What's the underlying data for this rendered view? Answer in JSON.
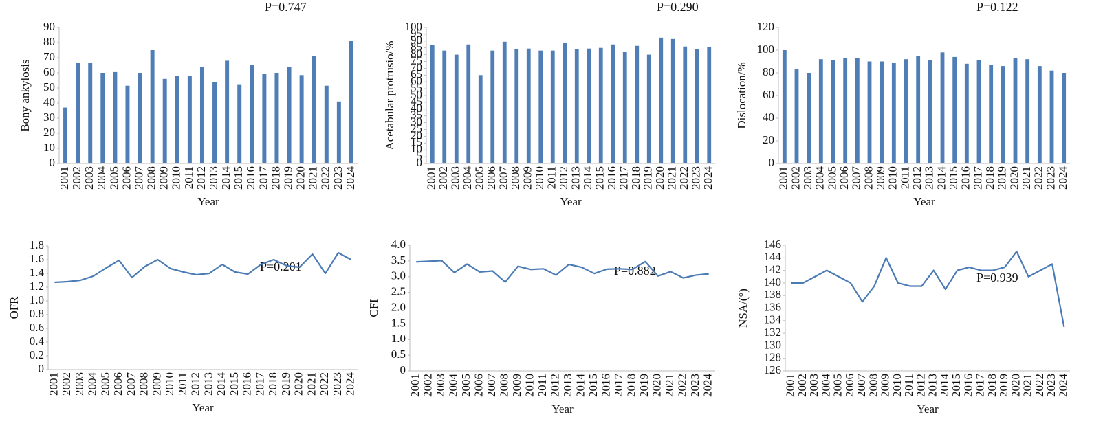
{
  "chart_data": [
    {
      "type": "bar",
      "y_label": "Bony ankylosis",
      "x_label": "Year",
      "annotation": "P=0.747",
      "color": "#4f7db6",
      "categories": [
        "2001",
        "2002",
        "2003",
        "2004",
        "2005",
        "2006",
        "2007",
        "2008",
        "2009",
        "2010",
        "2011",
        "2012",
        "2013",
        "2014",
        "2015",
        "2016",
        "2017",
        "2018",
        "2019",
        "2020",
        "2021",
        "2022",
        "2023",
        "2024"
      ],
      "values": [
        37,
        66.5,
        66.5,
        60,
        60.5,
        51.5,
        60,
        75,
        56,
        58,
        58,
        64,
        54,
        68,
        52,
        65,
        59.5,
        60,
        64,
        58.5,
        71,
        51.5,
        41,
        81
      ],
      "ylim": [
        0,
        90
      ],
      "yticks": [
        0,
        10,
        20,
        30,
        40,
        50,
        60,
        70,
        80,
        90
      ]
    },
    {
      "type": "bar",
      "y_label": "Acetabular protrusio/%",
      "x_label": "Year",
      "annotation": "P=0.290",
      "color": "#4f7db6",
      "categories": [
        "2001",
        "2002",
        "2003",
        "2004",
        "2005",
        "2006",
        "2007",
        "2008",
        "2009",
        "2010",
        "2011",
        "2012",
        "2013",
        "2014",
        "2015",
        "2016",
        "2017",
        "2018",
        "2019",
        "2020",
        "2021",
        "2022",
        "2023",
        "2024"
      ],
      "values": [
        87,
        83,
        80,
        87.5,
        65,
        83,
        89.5,
        84,
        84.5,
        83,
        83,
        88.5,
        84,
        84.5,
        85,
        87.5,
        82,
        86.5,
        80,
        92.5,
        91.5,
        86,
        84,
        85.5
      ],
      "ylim": [
        0,
        100
      ],
      "yticks": [
        0,
        5,
        10,
        15,
        20,
        25,
        30,
        35,
        40,
        45,
        50,
        55,
        60,
        65,
        70,
        75,
        80,
        85,
        90,
        95,
        100
      ]
    },
    {
      "type": "bar",
      "y_label": "Dislocation/%",
      "x_label": "Year",
      "annotation": "P=0.122",
      "color": "#4f7db6",
      "categories": [
        "2001",
        "2002",
        "2003",
        "2004",
        "2005",
        "2006",
        "2007",
        "2008",
        "2009",
        "2010",
        "2011",
        "2012",
        "2013",
        "2014",
        "2015",
        "2016",
        "2017",
        "2018",
        "2019",
        "2020",
        "2021",
        "2022",
        "2023",
        "2024"
      ],
      "values": [
        100,
        83,
        80,
        92,
        91,
        93,
        93,
        90,
        90,
        89,
        92,
        95,
        91,
        98,
        94,
        88,
        91,
        87,
        86,
        93,
        92,
        86,
        82,
        80
      ],
      "ylim": [
        0,
        120
      ],
      "yticks": [
        0,
        20,
        40,
        60,
        80,
        100,
        120
      ]
    },
    {
      "type": "line",
      "y_label": "OFR",
      "x_label": "Year",
      "annotation": "P=0.201",
      "color": "#4a7bb4",
      "categories": [
        "2001",
        "2002",
        "2003",
        "2004",
        "2005",
        "2006",
        "2007",
        "2008",
        "2009",
        "2010",
        "2011",
        "2012",
        "2013",
        "2014",
        "2015",
        "2016",
        "2017",
        "2018",
        "2019",
        "2020",
        "2021",
        "2022",
        "2023",
        "2024"
      ],
      "values": [
        1.27,
        1.28,
        1.3,
        1.36,
        1.48,
        1.59,
        1.34,
        1.5,
        1.6,
        1.47,
        1.42,
        1.38,
        1.4,
        1.53,
        1.42,
        1.39,
        1.53,
        1.6,
        1.51,
        1.49,
        1.68,
        1.4,
        1.7,
        1.6
      ],
      "ylim": [
        0,
        1.8
      ],
      "yticks": [
        0,
        0.2,
        0.4,
        0.6,
        0.8,
        {
          "value": 1,
          "label": "1.0"
        },
        1.2,
        1.4,
        1.6,
        1.8
      ]
    },
    {
      "type": "line",
      "y_label": "CFI",
      "x_label": "Year",
      "annotation": "P=0.882",
      "color": "#4a7bb4",
      "categories": [
        "2001",
        "2002",
        "2003",
        "2004",
        "2005",
        "2006",
        "2007",
        "2008",
        "2009",
        "2010",
        "2011",
        "2012",
        "2013",
        "2014",
        "2015",
        "2016",
        "2017",
        "2018",
        "2019",
        "2020",
        "2021",
        "2022",
        "2023",
        "2024"
      ],
      "values": [
        3.47,
        3.49,
        3.51,
        3.13,
        3.4,
        3.15,
        3.18,
        2.83,
        3.33,
        3.23,
        3.25,
        3.05,
        3.39,
        3.3,
        3.1,
        3.24,
        3.25,
        3.23,
        3.48,
        3.02,
        3.16,
        2.96,
        3.05,
        3.09
      ],
      "ylim": [
        0,
        4
      ],
      "yticks": [
        0,
        0.5,
        {
          "value": 1,
          "label": "1.0"
        },
        1.5,
        {
          "value": 2,
          "label": "2.0"
        },
        2.5,
        {
          "value": 3,
          "label": "3.0"
        },
        3.5,
        {
          "value": 4,
          "label": "4.0"
        }
      ]
    },
    {
      "type": "line",
      "y_label": "NSA/(°)",
      "x_label": "Year",
      "annotation": "P=0.939",
      "color": "#4a7bb4",
      "categories": [
        "2001",
        "2002",
        "2003",
        "2004",
        "2005",
        "2006",
        "2007",
        "2008",
        "2009",
        "2010",
        "2011",
        "2012",
        "2013",
        "2014",
        "2015",
        "2016",
        "2017",
        "2018",
        "2019",
        "2020",
        "2021",
        "2022",
        "2023",
        "2024"
      ],
      "values": [
        140,
        140,
        141,
        142,
        141,
        140,
        137,
        139.5,
        144,
        140,
        139.5,
        139.5,
        142,
        139,
        142,
        142.5,
        142,
        142,
        142.5,
        145,
        141,
        142,
        143,
        133
      ],
      "ylim": [
        126,
        146
      ],
      "yticks": [
        126,
        128,
        130,
        132,
        134,
        136,
        138,
        140,
        142,
        144,
        146
      ]
    }
  ]
}
